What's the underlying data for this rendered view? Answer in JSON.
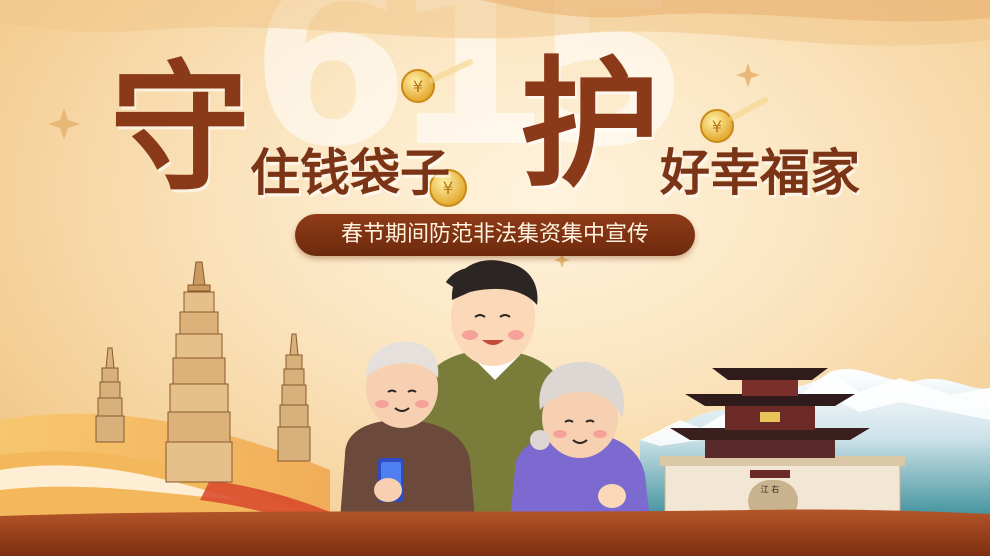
{
  "background_number": "615",
  "headline": {
    "part1_big": "守",
    "part1_small": "住钱袋子",
    "part2_big": "护",
    "part2_small": "好幸福家"
  },
  "subtitle": "春节期间防范非法集资集中宣传",
  "landmark_sign": "江 右",
  "colors": {
    "title": "#8a3a18",
    "pill": "#7a3212",
    "background": "#fbe6c2"
  }
}
